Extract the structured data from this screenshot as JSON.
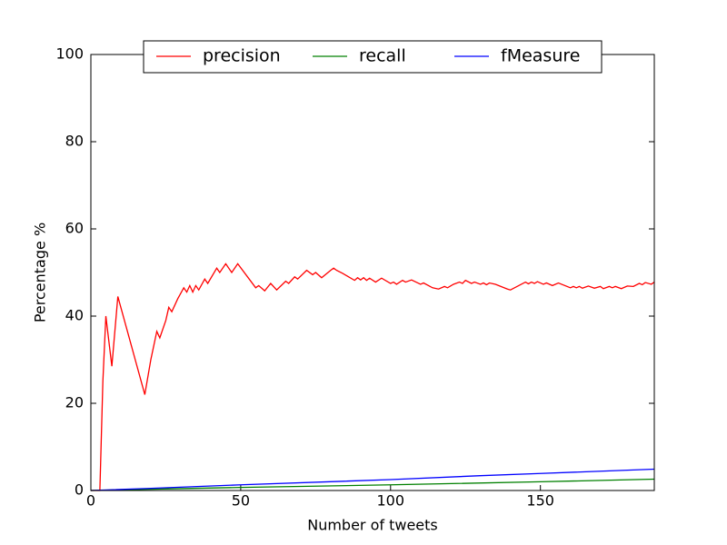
{
  "chart_data": {
    "type": "line",
    "xlabel": "Number of tweets",
    "ylabel": "Percentage %",
    "xlim": [
      0,
      188
    ],
    "ylim": [
      0,
      100
    ],
    "xticks": [
      0,
      50,
      100,
      150
    ],
    "yticks": [
      0,
      20,
      40,
      60,
      80,
      100
    ],
    "grid": false,
    "legend": "upper center",
    "series": [
      {
        "name": "precision",
        "color": "#ff0000",
        "x": [
          0,
          3,
          4,
          5,
          7,
          9,
          18,
          20,
          22,
          23,
          25,
          26,
          27,
          29,
          31,
          32,
          33,
          34,
          35,
          36,
          38,
          39,
          42,
          43,
          45,
          47,
          49,
          55,
          56,
          58,
          60,
          62,
          65,
          66,
          68,
          69,
          72,
          74,
          75,
          77,
          80,
          81,
          82,
          84,
          86,
          88,
          89,
          90,
          91,
          92,
          93,
          95,
          97,
          100,
          101,
          102,
          104,
          105,
          107,
          110,
          111,
          114,
          116,
          118,
          119,
          121,
          123,
          124,
          125,
          127,
          128,
          130,
          131,
          132,
          133,
          135,
          139,
          140,
          145,
          146,
          147,
          148,
          149,
          151,
          152,
          154,
          156,
          160,
          161,
          162,
          163,
          164,
          166,
          168,
          170,
          171,
          173,
          174,
          175,
          177,
          179,
          181,
          183,
          184,
          185,
          187,
          188
        ],
        "values": [
          0,
          0,
          25,
          40,
          28.5,
          44.5,
          22,
          30,
          36.5,
          35,
          39,
          42,
          41,
          44,
          46.5,
          45.5,
          47,
          45.5,
          47,
          46,
          48.5,
          47.5,
          51,
          50,
          52,
          50,
          52,
          46.5,
          47,
          45.8,
          47.5,
          46,
          48,
          47.5,
          49,
          48.5,
          50.5,
          49.5,
          50,
          48.8,
          50.5,
          51,
          50.5,
          49.8,
          49,
          48.2,
          48.8,
          48.3,
          48.8,
          48.2,
          48.7,
          47.8,
          48.7,
          47.5,
          47.8,
          47.3,
          48.2,
          47.8,
          48.3,
          47.3,
          47.6,
          46.5,
          46.2,
          46.8,
          46.5,
          47.3,
          47.8,
          47.5,
          48.2,
          47.5,
          47.8,
          47.3,
          47.6,
          47.2,
          47.6,
          47.3,
          46.2,
          46,
          47.8,
          47.4,
          47.8,
          47.5,
          47.9,
          47.3,
          47.6,
          47,
          47.6,
          46.5,
          46.8,
          46.5,
          46.8,
          46.4,
          46.9,
          46.4,
          46.8,
          46.3,
          46.8,
          46.5,
          46.8,
          46.3,
          46.9,
          46.8,
          47.5,
          47.2,
          47.7,
          47.3,
          47.8
        ]
      },
      {
        "name": "recall",
        "color": "#008000",
        "x": [
          0,
          20,
          50,
          100,
          150,
          188
        ],
        "values": [
          0,
          0.3,
          0.7,
          1.3,
          2.0,
          2.6
        ]
      },
      {
        "name": "fMeasure",
        "color": "#0000ff",
        "x": [
          0,
          20,
          50,
          100,
          130,
          150,
          188
        ],
        "values": [
          0,
          0.5,
          1.3,
          2.5,
          3.4,
          3.9,
          4.9
        ]
      }
    ]
  }
}
